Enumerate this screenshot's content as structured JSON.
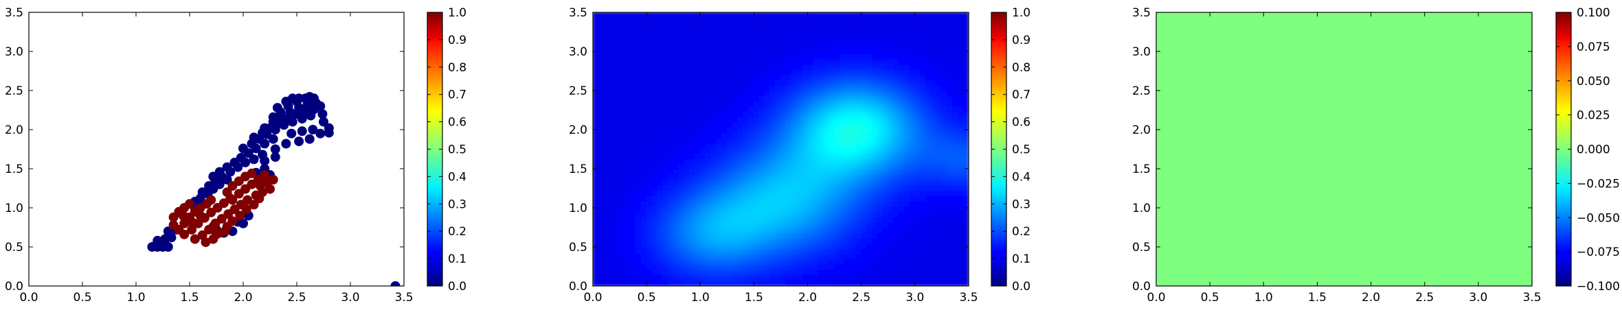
{
  "chart_data": [
    {
      "type": "scatter",
      "title": "",
      "xlabel": "",
      "ylabel": "",
      "xlim": [
        0.0,
        3.5
      ],
      "ylim": [
        0.0,
        3.5
      ],
      "xticks": [
        "0.0",
        "0.5",
        "1.0",
        "1.5",
        "2.0",
        "2.5",
        "3.0",
        "3.5"
      ],
      "yticks": [
        "0.0",
        "0.5",
        "1.0",
        "1.5",
        "2.0",
        "2.5",
        "3.0",
        "3.5"
      ],
      "grid": false,
      "colormap": "jet",
      "colorbar": {
        "range": [
          0.0,
          1.0
        ],
        "ticks": [
          "0.0",
          "0.1",
          "0.2",
          "0.3",
          "0.4",
          "0.5",
          "0.6",
          "0.7",
          "0.8",
          "0.9",
          "1.0"
        ]
      },
      "series": [
        {
          "value": 0.0,
          "color": "#00007f",
          "points": [
            [
              1.15,
              0.5
            ],
            [
              1.2,
              0.5
            ],
            [
              1.25,
              0.5
            ],
            [
              1.3,
              0.5
            ],
            [
              1.2,
              0.58
            ],
            [
              1.27,
              0.6
            ],
            [
              1.33,
              0.62
            ],
            [
              1.3,
              0.7
            ],
            [
              1.38,
              0.72
            ],
            [
              1.75,
              0.72
            ],
            [
              1.85,
              0.75
            ],
            [
              1.95,
              0.82
            ],
            [
              2.05,
              0.9
            ],
            [
              2.0,
              0.8
            ],
            [
              1.9,
              0.7
            ],
            [
              1.82,
              0.68
            ],
            [
              1.55,
              1.08
            ],
            [
              1.6,
              1.12
            ],
            [
              1.67,
              1.18
            ],
            [
              1.72,
              1.24
            ],
            [
              1.78,
              1.3
            ],
            [
              1.85,
              1.36
            ],
            [
              1.62,
              1.2
            ],
            [
              1.68,
              1.28
            ],
            [
              1.74,
              1.34
            ],
            [
              1.8,
              1.4
            ],
            [
              1.88,
              1.46
            ],
            [
              1.95,
              1.52
            ],
            [
              2.02,
              1.58
            ],
            [
              2.1,
              1.62
            ],
            [
              2.18,
              1.68
            ],
            [
              1.72,
              1.4
            ],
            [
              1.78,
              1.46
            ],
            [
              1.85,
              1.52
            ],
            [
              1.92,
              1.58
            ],
            [
              1.98,
              1.64
            ],
            [
              2.05,
              1.7
            ],
            [
              2.12,
              1.76
            ],
            [
              2.2,
              1.82
            ],
            [
              2.28,
              1.88
            ],
            [
              2.0,
              1.76
            ],
            [
              2.08,
              1.82
            ],
            [
              2.15,
              1.88
            ],
            [
              2.22,
              1.94
            ],
            [
              2.3,
              2.0
            ],
            [
              2.38,
              2.06
            ],
            [
              2.46,
              2.1
            ],
            [
              2.55,
              2.14
            ],
            [
              2.63,
              2.18
            ],
            [
              2.1,
              1.9
            ],
            [
              2.18,
              1.96
            ],
            [
              2.25,
              2.02
            ],
            [
              2.33,
              2.08
            ],
            [
              2.42,
              2.14
            ],
            [
              2.5,
              2.2
            ],
            [
              2.58,
              2.24
            ],
            [
              2.66,
              2.26
            ],
            [
              2.74,
              2.2
            ],
            [
              2.2,
              2.02
            ],
            [
              2.28,
              2.1
            ],
            [
              2.36,
              2.16
            ],
            [
              2.44,
              2.22
            ],
            [
              2.52,
              2.28
            ],
            [
              2.6,
              2.32
            ],
            [
              2.68,
              2.34
            ],
            [
              2.75,
              2.1
            ],
            [
              2.8,
              2.02
            ],
            [
              2.8,
              1.96
            ],
            [
              2.28,
              2.16
            ],
            [
              2.35,
              2.22
            ],
            [
              2.42,
              2.3
            ],
            [
              2.5,
              2.36
            ],
            [
              2.58,
              2.4
            ],
            [
              2.66,
              2.4
            ],
            [
              2.72,
              2.3
            ],
            [
              2.32,
              2.28
            ],
            [
              2.4,
              2.36
            ],
            [
              2.46,
              2.4
            ],
            [
              2.52,
              2.4
            ],
            [
              2.62,
              2.42
            ],
            [
              2.45,
              1.95
            ],
            [
              2.55,
              1.98
            ],
            [
              2.65,
              2.0
            ],
            [
              2.72,
              1.95
            ],
            [
              2.62,
              1.88
            ],
            [
              2.52,
              1.85
            ],
            [
              2.4,
              1.82
            ],
            [
              2.3,
              1.75
            ],
            [
              2.2,
              1.6
            ],
            [
              2.3,
              1.65
            ],
            [
              2.12,
              1.45
            ],
            [
              2.2,
              1.5
            ],
            [
              2.25,
              1.42
            ],
            [
              1.55,
              1.0
            ],
            [
              1.62,
              1.05
            ],
            [
              3.42,
              0.0
            ]
          ]
        },
        {
          "value": 1.0,
          "color": "#7f0000",
          "points": [
            [
              1.35,
              0.78
            ],
            [
              1.35,
              0.88
            ],
            [
              1.4,
              0.95
            ],
            [
              1.45,
              1.0
            ],
            [
              1.5,
              1.05
            ],
            [
              1.4,
              0.72
            ],
            [
              1.45,
              0.8
            ],
            [
              1.5,
              0.88
            ],
            [
              1.55,
              0.95
            ],
            [
              1.6,
              1.0
            ],
            [
              1.66,
              1.05
            ],
            [
              1.45,
              0.66
            ],
            [
              1.52,
              0.72
            ],
            [
              1.58,
              0.8
            ],
            [
              1.64,
              0.87
            ],
            [
              1.7,
              0.94
            ],
            [
              1.76,
              1.0
            ],
            [
              1.82,
              1.06
            ],
            [
              1.88,
              1.12
            ],
            [
              1.55,
              0.6
            ],
            [
              1.62,
              0.65
            ],
            [
              1.68,
              0.72
            ],
            [
              1.74,
              0.8
            ],
            [
              1.8,
              0.86
            ],
            [
              1.86,
              0.92
            ],
            [
              1.92,
              0.98
            ],
            [
              1.98,
              1.04
            ],
            [
              2.04,
              1.1
            ],
            [
              1.65,
              0.56
            ],
            [
              1.72,
              0.6
            ],
            [
              1.78,
              0.68
            ],
            [
              1.85,
              0.76
            ],
            [
              1.9,
              0.83
            ],
            [
              1.97,
              0.9
            ],
            [
              2.03,
              0.98
            ],
            [
              2.1,
              1.04
            ],
            [
              2.15,
              1.12
            ],
            [
              1.75,
              0.66
            ],
            [
              1.83,
              0.7
            ],
            [
              1.9,
              1.1
            ],
            [
              1.96,
              1.18
            ],
            [
              2.02,
              1.24
            ],
            [
              2.08,
              1.3
            ],
            [
              2.14,
              1.36
            ],
            [
              2.2,
              1.42
            ],
            [
              1.85,
              1.2
            ],
            [
              1.9,
              1.28
            ],
            [
              1.96,
              1.34
            ],
            [
              2.02,
              1.4
            ],
            [
              2.08,
              1.44
            ],
            [
              2.16,
              1.28
            ],
            [
              2.22,
              1.32
            ],
            [
              2.28,
              1.36
            ],
            [
              2.18,
              1.2
            ],
            [
              2.25,
              1.24
            ],
            [
              2.12,
              1.16
            ],
            [
              1.6,
              0.9
            ],
            [
              1.7,
              1.1
            ],
            [
              1.52,
              0.82
            ],
            [
              1.44,
              0.9
            ],
            [
              1.72,
              0.76
            ]
          ]
        }
      ]
    },
    {
      "type": "heatmap",
      "title": "",
      "xlabel": "",
      "ylabel": "",
      "xlim": [
        0.0,
        3.5
      ],
      "ylim": [
        0.0,
        3.5
      ],
      "xticks": [
        "0.0",
        "0.5",
        "1.0",
        "1.5",
        "2.0",
        "2.5",
        "3.0",
        "3.5"
      ],
      "yticks": [
        "0.0",
        "0.5",
        "1.0",
        "1.5",
        "2.0",
        "2.5",
        "3.0",
        "3.5"
      ],
      "colormap": "jet",
      "colorbar": {
        "range": [
          0.0,
          1.0
        ],
        "ticks": [
          "0.0",
          "0.1",
          "0.2",
          "0.3",
          "0.4",
          "0.5",
          "0.6",
          "0.7",
          "0.8",
          "0.9",
          "1.0"
        ]
      },
      "baseline": 0.1,
      "blobs": [
        {
          "x": 2.45,
          "y": 2.0,
          "amplitude": 0.28,
          "sigma": 0.45
        },
        {
          "x": 1.8,
          "y": 1.1,
          "amplitude": 0.2,
          "sigma": 0.5
        },
        {
          "x": 1.1,
          "y": 0.65,
          "amplitude": 0.15,
          "sigma": 0.4
        },
        {
          "x": 3.5,
          "y": 1.6,
          "amplitude": 0.1,
          "sigma": 0.3
        }
      ]
    },
    {
      "type": "heatmap",
      "title": "",
      "xlabel": "",
      "ylabel": "",
      "xlim": [
        0.0,
        3.5
      ],
      "ylim": [
        0.0,
        3.5
      ],
      "xticks": [
        "0.0",
        "0.5",
        "1.0",
        "1.5",
        "2.0",
        "2.5",
        "3.0",
        "3.5"
      ],
      "yticks": [
        "0.0",
        "0.5",
        "1.0",
        "1.5",
        "2.0",
        "2.5",
        "3.0",
        "3.5"
      ],
      "colormap": "jet",
      "fill_value": 0.0,
      "fill_color": "#7fff7f",
      "colorbar": {
        "range": [
          -0.1,
          0.1
        ],
        "ticks": [
          "−0.100",
          "−0.075",
          "−0.050",
          "−0.025",
          "0.000",
          "0.025",
          "0.050",
          "0.075",
          "0.100"
        ]
      }
    }
  ]
}
